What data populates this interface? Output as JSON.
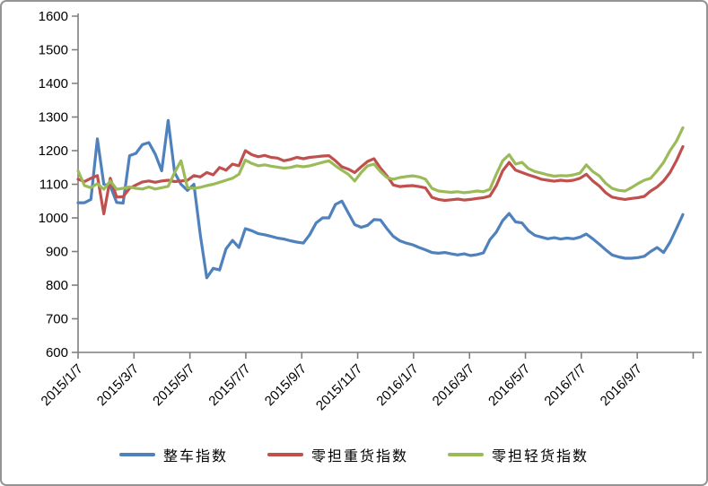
{
  "chart_data": {
    "type": "line",
    "title": "",
    "grid": false,
    "legend_position": "bottom",
    "axis_color": "#7f7f7f",
    "y_axis": {
      "min": 600,
      "max": 1600,
      "step": 100,
      "ticks": [
        "600",
        "700",
        "800",
        "900",
        "1000",
        "1100",
        "1200",
        "1300",
        "1400",
        "1500",
        "1600"
      ]
    },
    "x_axis": {
      "ticks": [
        "2015/1/7",
        "2015/3/7",
        "2015/5/7",
        "2015/7/7",
        "2015/9/7",
        "2015/11/7",
        "2016/1/7",
        "2016/3/7",
        "2016/5/7",
        "2016/7/7",
        "2016/9/7"
      ]
    },
    "series": [
      {
        "name": "整车指数",
        "color": "#4F81BD",
        "values": [
          1045,
          1045,
          1055,
          1235,
          1100,
          1095,
          1046,
          1044,
          1185,
          1192,
          1218,
          1224,
          1190,
          1140,
          1290,
          1135,
          1100,
          1082,
          1100,
          950,
          822,
          850,
          845,
          908,
          933,
          912,
          968,
          962,
          953,
          950,
          945,
          940,
          937,
          932,
          928,
          925,
          950,
          985,
          1000,
          1000,
          1040,
          1050,
          1015,
          980,
          972,
          978,
          995,
          994,
          968,
          945,
          932,
          925,
          920,
          912,
          905,
          897,
          895,
          897,
          893,
          890,
          893,
          888,
          891,
          896,
          935,
          958,
          992,
          1013,
          988,
          985,
          962,
          948,
          943,
          938,
          941,
          937,
          940,
          938,
          943,
          952,
          938,
          922,
          905,
          890,
          884,
          880,
          880,
          882,
          886,
          900,
          912,
          897,
          928,
          968,
          1010
        ]
      },
      {
        "name": "零担重货指数",
        "color": "#C0504D",
        "values": [
          1115,
          1108,
          1118,
          1126,
          1012,
          1118,
          1062,
          1063,
          1088,
          1098,
          1107,
          1110,
          1106,
          1110,
          1112,
          1108,
          1110,
          1112,
          1126,
          1122,
          1135,
          1128,
          1150,
          1142,
          1160,
          1155,
          1200,
          1188,
          1182,
          1186,
          1180,
          1178,
          1170,
          1174,
          1180,
          1176,
          1180,
          1182,
          1184,
          1185,
          1170,
          1152,
          1145,
          1135,
          1152,
          1168,
          1176,
          1148,
          1125,
          1098,
          1093,
          1095,
          1096,
          1093,
          1089,
          1061,
          1055,
          1052,
          1054,
          1056,
          1053,
          1055,
          1058,
          1060,
          1065,
          1096,
          1140,
          1165,
          1142,
          1135,
          1128,
          1122,
          1115,
          1112,
          1109,
          1112,
          1110,
          1112,
          1118,
          1130,
          1110,
          1095,
          1075,
          1062,
          1058,
          1055,
          1058,
          1060,
          1064,
          1080,
          1092,
          1110,
          1135,
          1170,
          1212
        ]
      },
      {
        "name": "零担轻货指数",
        "color": "#9BBB59",
        "values": [
          1140,
          1096,
          1090,
          1102,
          1085,
          1110,
          1085,
          1088,
          1092,
          1088,
          1086,
          1092,
          1086,
          1090,
          1094,
          1135,
          1170,
          1090,
          1088,
          1091,
          1096,
          1100,
          1106,
          1112,
          1118,
          1130,
          1172,
          1162,
          1155,
          1158,
          1154,
          1151,
          1148,
          1150,
          1155,
          1152,
          1155,
          1160,
          1165,
          1170,
          1155,
          1142,
          1130,
          1110,
          1135,
          1155,
          1160,
          1138,
          1120,
          1115,
          1120,
          1123,
          1125,
          1122,
          1115,
          1088,
          1080,
          1078,
          1076,
          1078,
          1075,
          1077,
          1080,
          1078,
          1085,
          1130,
          1170,
          1188,
          1160,
          1165,
          1147,
          1138,
          1133,
          1128,
          1124,
          1126,
          1125,
          1128,
          1133,
          1158,
          1138,
          1125,
          1103,
          1088,
          1082,
          1080,
          1090,
          1102,
          1112,
          1118,
          1140,
          1165,
          1200,
          1228,
          1268
        ]
      }
    ]
  }
}
